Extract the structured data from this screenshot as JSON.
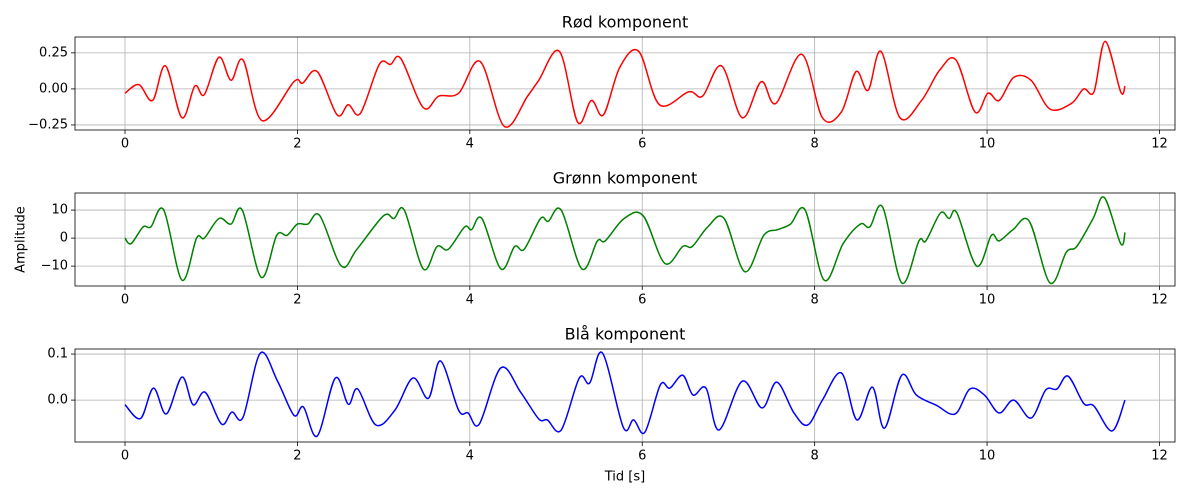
{
  "chart_data": [
    {
      "type": "line",
      "title": "Rød komponent",
      "grid": true,
      "xlim": [
        -0.58,
        12.18
      ],
      "xticks": [
        0,
        2,
        4,
        6,
        8,
        10,
        12
      ],
      "ylim": [
        -0.285,
        0.36
      ],
      "yticks": [
        {
          "value": -0.25,
          "label": "−0.25"
        },
        {
          "value": 0,
          "label": "0.00"
        },
        {
          "value": 0.25,
          "label": "0.25"
        }
      ],
      "x": [
        0,
        0.16,
        0.32,
        0.47,
        0.66,
        0.81,
        0.92,
        1.09,
        1.23,
        1.37,
        1.59,
        1.96,
        2.06,
        2.23,
        2.46,
        2.59,
        2.73,
        2.95,
        3.08,
        3.2,
        3.46,
        3.64,
        3.87,
        4.12,
        4.4,
        4.67,
        4.8,
        5.04,
        5.25,
        5.41,
        5.55,
        5.74,
        5.96,
        6.2,
        6.54,
        6.7,
        6.92,
        7.16,
        7.38,
        7.55,
        7.85,
        8.09,
        8.31,
        8.48,
        8.62,
        8.77,
        8.99,
        9.24,
        9.45,
        9.64,
        9.86,
        10.01,
        10.14,
        10.31,
        10.51,
        10.73,
        10.98,
        11.12,
        11.24,
        11.37,
        11.55,
        11.6
      ],
      "series": [
        {
          "color": "#ff0000",
          "values": [
            -0.03,
            0.03,
            -0.08,
            0.16,
            -0.2,
            0.02,
            -0.04,
            0.22,
            0.06,
            0.2,
            -0.22,
            0.05,
            0.04,
            0.12,
            -0.18,
            -0.11,
            -0.17,
            0.17,
            0.17,
            0.21,
            -0.13,
            -0.05,
            -0.03,
            0.19,
            -0.26,
            -0.05,
            0.06,
            0.26,
            -0.23,
            -0.08,
            -0.18,
            0.15,
            0.26,
            -0.11,
            -0.02,
            -0.05,
            0.16,
            -0.2,
            0.05,
            -0.1,
            0.24,
            -0.2,
            -0.16,
            0.12,
            -0.01,
            0.26,
            -0.2,
            -0.08,
            0.13,
            0.2,
            -0.16,
            -0.03,
            -0.08,
            0.08,
            0.06,
            -0.14,
            -0.1,
            0.0,
            -0.02,
            0.33,
            -0.02,
            0.02
          ]
        }
      ]
    },
    {
      "type": "line",
      "title": "Grønn komponent",
      "ylabel": "Amplitude",
      "grid": true,
      "xlim": [
        -0.58,
        12.18
      ],
      "xticks": [
        0,
        2,
        4,
        6,
        8,
        10,
        12
      ],
      "ylim": [
        -17.1,
        16.1
      ],
      "yticks": [
        {
          "value": -10,
          "label": "−10"
        },
        0,
        10
      ],
      "x": [
        0,
        0.07,
        0.21,
        0.3,
        0.45,
        0.66,
        0.83,
        0.92,
        1.09,
        1.23,
        1.36,
        1.58,
        1.76,
        1.88,
        2.0,
        2.12,
        2.26,
        2.51,
        2.69,
        3.0,
        3.12,
        3.24,
        3.46,
        3.62,
        3.75,
        3.94,
        4.02,
        4.14,
        4.36,
        4.52,
        4.63,
        4.82,
        4.91,
        5.06,
        5.3,
        5.48,
        5.57,
        5.79,
        6.01,
        6.26,
        6.47,
        6.58,
        6.76,
        6.95,
        7.19,
        7.41,
        7.57,
        7.72,
        7.89,
        8.11,
        8.33,
        8.53,
        8.64,
        8.79,
        9.01,
        9.21,
        9.29,
        9.46,
        9.56,
        9.65,
        9.88,
        10.05,
        10.14,
        10.3,
        10.49,
        10.73,
        10.92,
        11.04,
        11.23,
        11.36,
        11.55,
        11.6
      ],
      "series": [
        {
          "color": "#008000",
          "values": [
            0,
            -2,
            4,
            4,
            10,
            -15,
            0,
            0,
            7,
            5,
            10,
            -14,
            1,
            1,
            5,
            5,
            8,
            -10,
            -4,
            8,
            7,
            10,
            -11,
            -3,
            -4,
            4,
            3,
            7,
            -11,
            -3,
            -4,
            7,
            6,
            10,
            -11,
            -1,
            -1,
            7,
            8,
            -9,
            -3,
            -3,
            4,
            7,
            -12,
            1,
            3,
            5,
            10,
            -15,
            -2,
            5,
            4,
            11,
            -16,
            -1,
            -1,
            9,
            7,
            9,
            -10,
            1,
            -1,
            3,
            6,
            -16,
            -5,
            -3,
            7,
            14.5,
            -2,
            2
          ]
        }
      ]
    },
    {
      "type": "line",
      "title": "Blå komponent",
      "xlabel": "Tid [s]",
      "grid": true,
      "xlim": [
        -0.58,
        12.18
      ],
      "xticks": [
        0,
        2,
        4,
        6,
        8,
        10,
        12
      ],
      "ylim": [
        -0.091,
        0.111
      ],
      "yticks": [
        {
          "value": 0,
          "label": "0.0"
        },
        0.1
      ],
      "x": [
        0,
        0.18,
        0.33,
        0.48,
        0.66,
        0.79,
        0.93,
        1.12,
        1.24,
        1.37,
        1.57,
        1.77,
        1.96,
        2.07,
        2.23,
        2.44,
        2.59,
        2.7,
        2.91,
        3.13,
        3.34,
        3.52,
        3.66,
        3.87,
        3.98,
        4.11,
        4.36,
        4.59,
        4.8,
        4.9,
        5.06,
        5.27,
        5.39,
        5.54,
        5.78,
        5.9,
        6.03,
        6.21,
        6.32,
        6.47,
        6.59,
        6.74,
        6.89,
        7.16,
        7.39,
        7.56,
        7.76,
        7.92,
        8.09,
        8.31,
        8.49,
        8.67,
        8.81,
        9.01,
        9.18,
        9.41,
        9.63,
        9.8,
        9.97,
        10.14,
        10.31,
        10.51,
        10.68,
        10.81,
        10.94,
        11.12,
        11.24,
        11.45,
        11.6
      ],
      "series": [
        {
          "color": "#0000ff",
          "values": [
            -0.01,
            -0.04,
            0.026,
            -0.03,
            0.05,
            -0.01,
            0.017,
            -0.052,
            -0.026,
            -0.037,
            0.102,
            0.041,
            -0.033,
            -0.015,
            -0.078,
            0.048,
            -0.009,
            0.024,
            -0.054,
            -0.022,
            0.048,
            0.004,
            0.085,
            -0.022,
            -0.028,
            -0.052,
            0.07,
            0.017,
            -0.041,
            -0.043,
            -0.065,
            0.048,
            0.037,
            0.102,
            -0.059,
            -0.043,
            -0.07,
            0.033,
            0.026,
            0.054,
            0.011,
            0.026,
            -0.065,
            0.041,
            -0.017,
            0.039,
            -0.028,
            -0.054,
            0,
            0.059,
            -0.043,
            0.028,
            -0.061,
            0.054,
            0.011,
            -0.011,
            -0.03,
            0.024,
            0.011,
            -0.028,
            0,
            -0.039,
            0.022,
            0.024,
            0.052,
            -0.007,
            -0.013,
            -0.067,
            0
          ]
        }
      ]
    }
  ]
}
